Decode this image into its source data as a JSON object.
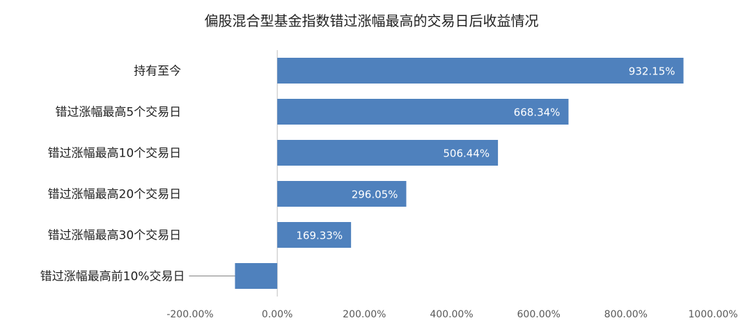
{
  "chart_data": {
    "type": "bar",
    "orientation": "horizontal",
    "title": "偏股混合型基金指数错过涨幅最高的交易日后收益情况",
    "categories": [
      "持有至今",
      "错过涨幅最高5个交易日",
      "错过涨幅最高10个交易日",
      "错过涨幅最高20个交易日",
      "错过涨幅最高30个交易日",
      "错过涨幅最高前10%交易日"
    ],
    "values": [
      932.15,
      668.34,
      506.44,
      296.05,
      169.33,
      -97
    ],
    "data_labels": [
      "932.15%",
      "668.34%",
      "506.44%",
      "296.05%",
      "169.33%",
      ""
    ],
    "xlim": [
      -200,
      1000
    ],
    "xticks": [
      -200,
      0,
      200,
      400,
      600,
      800,
      1000
    ],
    "xtick_labels": [
      "-200.00%",
      "0.00%",
      "200.00%",
      "400.00%",
      "600.00%",
      "800.00%",
      "1000.00%"
    ],
    "bar_color": "#4f81bd",
    "axis_color": "#bfbfbf",
    "grid": false,
    "legend": "none"
  }
}
